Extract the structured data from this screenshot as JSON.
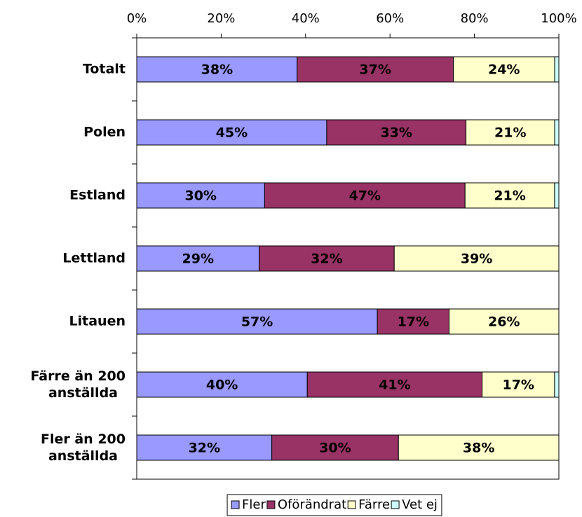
{
  "chart_data": {
    "type": "stacked-bar-horizontal-percent",
    "categories": [
      "Totalt",
      "Polen",
      "Estland",
      "Lettland",
      "Litauen",
      "Färre än 200 anställda",
      "Fler än 200 anställda"
    ],
    "series": [
      {
        "name": "Fler",
        "color": "#9999ff",
        "values": [
          38,
          45,
          30,
          29,
          57,
          40,
          32
        ],
        "value_labels": [
          "38%",
          "45%",
          "30%",
          "29%",
          "57%",
          "40%",
          "32%"
        ]
      },
      {
        "name": "Oförändrat",
        "color": "#993366",
        "values": [
          37,
          33,
          47,
          32,
          17,
          41,
          30
        ],
        "value_labels": [
          "37%",
          "33%",
          "47%",
          "32%",
          "17%",
          "41%",
          "30%"
        ]
      },
      {
        "name": "Färre",
        "color": "#ffffcc",
        "values": [
          24,
          21,
          21,
          39,
          26,
          17,
          38
        ],
        "value_labels": [
          "24%",
          "21%",
          "21%",
          "39%",
          "26%",
          "17%",
          "38%"
        ]
      },
      {
        "name": "Vet ej",
        "color": "#ccffff",
        "values": [
          1,
          1,
          1,
          0,
          0,
          1,
          0
        ]
      }
    ],
    "xlim": [
      0,
      100
    ],
    "xticks": [
      {
        "value": 0,
        "label": "0%"
      },
      {
        "value": 20,
        "label": "20%"
      },
      {
        "value": 40,
        "label": "40%"
      },
      {
        "value": 60,
        "label": "60%"
      },
      {
        "value": 80,
        "label": "80%"
      },
      {
        "value": 100,
        "label": "100%"
      }
    ],
    "legend": "bottom"
  }
}
